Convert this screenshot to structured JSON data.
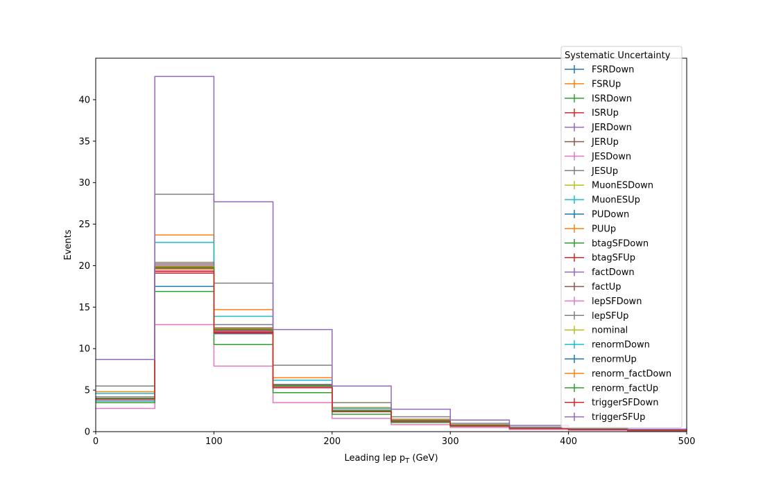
{
  "chart_data": {
    "type": "step",
    "xlabel": "Leading lep p",
    "xlabel_sub": "T",
    "xlabel_unit": " (GeV)",
    "ylabel": "Events",
    "xlim": [
      0,
      500
    ],
    "ylim": [
      0,
      45
    ],
    "x_ticks": [
      0,
      100,
      200,
      300,
      400,
      500
    ],
    "y_ticks": [
      0,
      5,
      10,
      15,
      20,
      25,
      30,
      35,
      40
    ],
    "grid": false,
    "legend": {
      "title": "Systematic Uncertainty",
      "placement": "upper-right"
    },
    "bin_edges": [
      0,
      50,
      100,
      150,
      200,
      250,
      300,
      350,
      400,
      450,
      500
    ],
    "series": [
      {
        "name": "FSRDown",
        "color": "#1f77b4",
        "values": [
          3.7,
          17.5,
          11.8,
          5.3,
          2.4,
          1.2,
          0.7,
          0.35,
          0.25,
          0.15
        ]
      },
      {
        "name": "FSRUp",
        "color": "#ff7f0e",
        "values": [
          4.8,
          23.7,
          14.7,
          6.5,
          2.9,
          1.5,
          0.85,
          0.45,
          0.3,
          0.2
        ]
      },
      {
        "name": "ISRDown",
        "color": "#2ca02c",
        "values": [
          4.0,
          19.9,
          12.4,
          5.5,
          2.5,
          1.3,
          0.75,
          0.4,
          0.27,
          0.17
        ]
      },
      {
        "name": "ISRUp",
        "color": "#d62728",
        "values": [
          4.0,
          19.9,
          12.4,
          5.5,
          2.5,
          1.3,
          0.75,
          0.4,
          0.27,
          0.17
        ]
      },
      {
        "name": "JERDown",
        "color": "#9467bd",
        "values": [
          4.0,
          20.0,
          12.5,
          5.6,
          2.5,
          1.3,
          0.75,
          0.4,
          0.27,
          0.17
        ]
      },
      {
        "name": "JERUp",
        "color": "#8c564b",
        "values": [
          4.0,
          20.2,
          12.5,
          5.6,
          2.5,
          1.3,
          0.75,
          0.4,
          0.27,
          0.17
        ]
      },
      {
        "name": "JESDown",
        "color": "#e377c2",
        "values": [
          2.8,
          12.9,
          7.9,
          3.5,
          1.6,
          0.85,
          0.5,
          0.27,
          0.18,
          0.1
        ]
      },
      {
        "name": "JESUp",
        "color": "#7f7f7f",
        "values": [
          5.5,
          28.6,
          17.9,
          8.0,
          3.5,
          1.8,
          1.0,
          0.55,
          0.35,
          0.22
        ]
      },
      {
        "name": "MuonESDown",
        "color": "#bcbd22",
        "values": [
          4.0,
          19.8,
          12.3,
          5.5,
          2.5,
          1.3,
          0.75,
          0.4,
          0.27,
          0.17
        ]
      },
      {
        "name": "MuonESUp",
        "color": "#17becf",
        "values": [
          4.6,
          22.8,
          13.9,
          6.2,
          2.8,
          1.4,
          0.8,
          0.43,
          0.29,
          0.19
        ]
      },
      {
        "name": "PUDown",
        "color": "#1f77b4",
        "values": [
          4.0,
          19.8,
          12.4,
          5.5,
          2.5,
          1.3,
          0.75,
          0.4,
          0.27,
          0.17
        ]
      },
      {
        "name": "PUUp",
        "color": "#ff7f0e",
        "values": [
          3.9,
          19.6,
          12.2,
          5.4,
          2.4,
          1.25,
          0.73,
          0.39,
          0.26,
          0.16
        ]
      },
      {
        "name": "btagSFDown",
        "color": "#2ca02c",
        "values": [
          3.5,
          16.9,
          10.5,
          4.7,
          2.1,
          1.1,
          0.65,
          0.35,
          0.23,
          0.14
        ]
      },
      {
        "name": "btagSFUp",
        "color": "#d62728",
        "values": [
          3.9,
          19.1,
          11.9,
          5.3,
          2.4,
          1.25,
          0.72,
          0.38,
          0.26,
          0.16
        ]
      },
      {
        "name": "factDown",
        "color": "#9467bd",
        "values": [
          4.0,
          20.0,
          12.4,
          5.5,
          2.5,
          1.3,
          0.75,
          0.4,
          0.27,
          0.17
        ]
      },
      {
        "name": "factUp",
        "color": "#8c564b",
        "values": [
          4.0,
          19.7,
          12.2,
          5.4,
          2.4,
          1.25,
          0.73,
          0.39,
          0.26,
          0.16
        ]
      },
      {
        "name": "lepSFDown",
        "color": "#e377c2",
        "values": [
          3.9,
          19.4,
          12.1,
          5.4,
          2.4,
          1.25,
          0.72,
          0.38,
          0.26,
          0.16
        ]
      },
      {
        "name": "lepSFUp",
        "color": "#7f7f7f",
        "values": [
          4.2,
          20.4,
          12.9,
          5.7,
          2.6,
          1.35,
          0.78,
          0.42,
          0.28,
          0.18
        ]
      },
      {
        "name": "nominal",
        "color": "#bcbd22",
        "values": [
          4.0,
          19.9,
          12.4,
          5.5,
          2.5,
          1.3,
          0.75,
          0.4,
          0.27,
          0.17
        ]
      },
      {
        "name": "renormDown",
        "color": "#17becf",
        "values": [
          4.0,
          19.9,
          12.4,
          5.5,
          2.5,
          1.3,
          0.75,
          0.4,
          0.27,
          0.17
        ]
      },
      {
        "name": "renormUp",
        "color": "#1f77b4",
        "values": [
          4.0,
          19.8,
          12.3,
          5.5,
          2.5,
          1.3,
          0.75,
          0.4,
          0.27,
          0.17
        ]
      },
      {
        "name": "renorm_factDown",
        "color": "#ff7f0e",
        "values": [
          4.0,
          19.9,
          12.4,
          5.5,
          2.5,
          1.3,
          0.75,
          0.4,
          0.27,
          0.17
        ]
      },
      {
        "name": "renorm_factUp",
        "color": "#2ca02c",
        "values": [
          4.0,
          19.8,
          12.3,
          5.5,
          2.5,
          1.3,
          0.75,
          0.4,
          0.27,
          0.17
        ]
      },
      {
        "name": "triggerSFDown",
        "color": "#d62728",
        "values": [
          3.9,
          19.3,
          12.0,
          5.3,
          2.4,
          1.25,
          0.72,
          0.38,
          0.26,
          0.16
        ]
      },
      {
        "name": "triggerSFUp",
        "color": "#9467bd",
        "values": [
          8.7,
          42.8,
          27.7,
          12.3,
          5.5,
          2.7,
          1.4,
          0.75,
          0.5,
          0.3
        ]
      }
    ]
  }
}
